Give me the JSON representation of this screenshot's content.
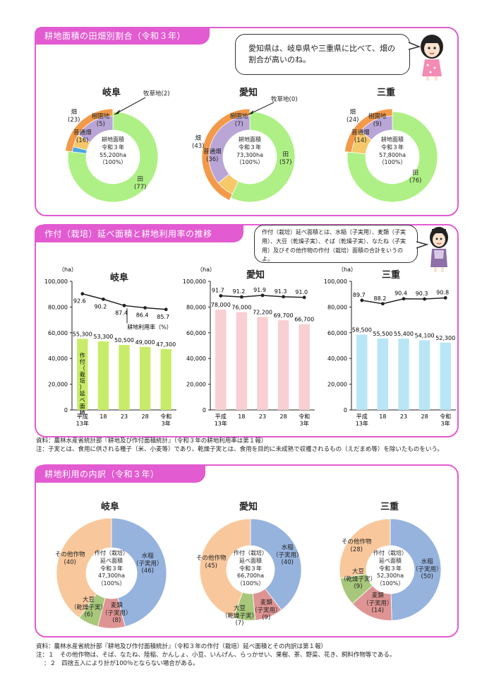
{
  "section1": {
    "title": "耕地面積の田畑別割合（令和３年）",
    "speech": "愛知県は、岐阜県や三重県に比べて、畑の割合が高いのね。",
    "charts": [
      {
        "pref": "岐阜",
        "center": [
          "耕地面積",
          "令和３年",
          "55,200ha",
          "（100%）"
        ],
        "labels": {
          "field": "畑",
          "field_v": "(23)",
          "ordinary": "普通畑",
          "ordinary_v": "(16)",
          "orchard": "樹園地",
          "orchard_v": "(5)",
          "pasture": "牧草地(2)",
          "paddy": "田",
          "paddy_v": "(77)"
        }
      },
      {
        "pref": "愛知",
        "center": [
          "耕地面積",
          "令和３年",
          "73,300ha",
          "（100%）"
        ],
        "labels": {
          "field": "畑",
          "field_v": "(43)",
          "ordinary": "普通畑",
          "ordinary_v": "(36)",
          "orchard": "樹園地",
          "orchard_v": "(7)",
          "pasture": "牧草地(0)",
          "paddy": "田",
          "paddy_v": "(57)"
        }
      },
      {
        "pref": "三重",
        "center": [
          "耕地面積",
          "令和３年",
          "57,800ha",
          "（100%）"
        ],
        "labels": {
          "field": "畑",
          "field_v": "(24)",
          "ordinary": "普通畑",
          "ordinary_v": "(14)",
          "orchard": "樹園地",
          "orchard_v": "(9)",
          "paddy": "田",
          "paddy_v": "(76)"
        }
      }
    ]
  },
  "section2": {
    "title": "作付（栽培）延べ面積と耕地利用率の推移",
    "speech": "作付（栽培）延べ面積とは、水稲（子実用）、麦類（子実用）、大豆（乾燥子実）、そば（乾燥子実）、なたね（子実用）及びその他作物の作付（栽培）面積の合計をいうのよ。",
    "unit": "（ha）",
    "yticks": [
      "100,000",
      "80,000",
      "60,000",
      "40,000",
      "20,000",
      "0"
    ],
    "xticks": [
      "平成\n13年",
      "18",
      "23",
      "28",
      "令和\n3年"
    ],
    "rate_label": "耕地利用率（%）",
    "bar_label": "作付（栽培）延べ面積",
    "source": "資料：農林水産省統計部『耕地及び作付面積統計』（令和３年の耕地利用率は第１報）",
    "note": "注：子実とは、食用に供される種子（米、小麦等）であり、乾燥子実とは、食用を目的に未成熟で収穫されるもの（えだまめ等）を除いたものをいう。"
  },
  "chart_data": [
    {
      "type": "bar",
      "title": "岐阜",
      "categories": [
        "平成13年",
        "18",
        "23",
        "28",
        "令和3年"
      ],
      "values": [
        55300,
        53300,
        50500,
        49000,
        47300
      ],
      "value_labels": [
        "55,300",
        "53,300",
        "50,500",
        "49,000",
        "47,300"
      ],
      "line": [
        92.6,
        90.2,
        87.4,
        86.4,
        85.7
      ],
      "ylim": [
        0,
        100000
      ],
      "color": "#c8ec6a"
    },
    {
      "type": "bar",
      "title": "愛知",
      "categories": [
        "平成13年",
        "18",
        "23",
        "28",
        "令和3年"
      ],
      "values": [
        78000,
        76000,
        72200,
        69700,
        66700
      ],
      "value_labels": [
        "78,000",
        "76,000",
        "72,200",
        "69,700",
        "66,700"
      ],
      "line": [
        91.7,
        91.2,
        91.9,
        91.3,
        91.0
      ],
      "ylim": [
        0,
        100000
      ],
      "color": "#f8cfd2"
    },
    {
      "type": "bar",
      "title": "三重",
      "categories": [
        "平成13年",
        "18",
        "23",
        "28",
        "令和3年"
      ],
      "values": [
        58500,
        55500,
        55400,
        54100,
        52300
      ],
      "value_labels": [
        "58,500",
        "55,500",
        "55,400",
        "54,100",
        "52,300"
      ],
      "line": [
        89.7,
        88.2,
        90.4,
        90.3,
        90.8
      ],
      "ylim": [
        0,
        100000
      ],
      "color": "#b8e6f6"
    },
    {
      "type": "pie",
      "title": "岐阜",
      "slices": [
        {
          "name": "田",
          "value": 77,
          "color": "#aef085"
        },
        {
          "name": "牧草地",
          "value": 2,
          "color": "#4aa6e0"
        },
        {
          "name": "樹園地",
          "value": 5,
          "color": "#f6c86a"
        },
        {
          "name": "普通畑",
          "value": 16,
          "color": "#f29a4a"
        }
      ]
    },
    {
      "type": "pie",
      "title": "愛知",
      "slices": [
        {
          "name": "田",
          "value": 57,
          "color": "#aef085"
        },
        {
          "name": "牧草地",
          "value": 0,
          "color": "#4aa6e0"
        },
        {
          "name": "樹園地",
          "value": 7,
          "color": "#f6c86a"
        },
        {
          "name": "普通畑",
          "value": 36,
          "color": "#f29a4a"
        }
      ]
    },
    {
      "type": "pie",
      "title": "三重",
      "slices": [
        {
          "name": "田",
          "value": 76,
          "color": "#aef085"
        },
        {
          "name": "樹園地",
          "value": 9,
          "color": "#f6c86a"
        },
        {
          "name": "普通畑",
          "value": 14,
          "color": "#f29a4a"
        }
      ]
    },
    {
      "type": "pie",
      "title": "岐阜",
      "slices": [
        {
          "name": "水稲（子実用）",
          "value": 46,
          "color": "#96b3de"
        },
        {
          "name": "麦類（子実用）",
          "value": 8,
          "color": "#de9493"
        },
        {
          "name": "大豆（乾燥子実）",
          "value": 6,
          "color": "#a7c77a"
        },
        {
          "name": "その他作物",
          "value": 40,
          "color": "#f8c89c"
        }
      ]
    },
    {
      "type": "pie",
      "title": "愛知",
      "slices": [
        {
          "name": "水稲（子実用）",
          "value": 40,
          "color": "#96b3de"
        },
        {
          "name": "麦類（子実用）",
          "value": 9,
          "color": "#de9493"
        },
        {
          "name": "大豆（乾燥子実）",
          "value": 7,
          "color": "#a7c77a"
        },
        {
          "name": "その他作物",
          "value": 45,
          "color": "#f8c89c"
        }
      ]
    },
    {
      "type": "pie",
      "title": "三重",
      "slices": [
        {
          "name": "水稲（子実用）",
          "value": 50,
          "color": "#96b3de"
        },
        {
          "name": "麦類（子実用）",
          "value": 14,
          "color": "#de9493"
        },
        {
          "name": "大豆（乾燥子実）",
          "value": 9,
          "color": "#a7c77a"
        },
        {
          "name": "その他作物",
          "value": 28,
          "color": "#f8c89c"
        }
      ]
    }
  ],
  "section3": {
    "title": "耕地利用の内訳（令和３年）",
    "charts": [
      {
        "pref": "岐阜",
        "center": [
          "作付（栽培）",
          "延べ面積",
          "令和３年",
          "47,300ha",
          "（100%）"
        ],
        "labels": {
          "rice": "水稲\n（子実用）",
          "rice_v": "(46)",
          "wheat": "麦類\n（子実用）",
          "wheat_v": "(8)",
          "soy": "大豆\n（乾燥子実）",
          "soy_v": "(6)",
          "other": "その他作物",
          "other_v": "(40)"
        }
      },
      {
        "pref": "愛知",
        "center": [
          "作付（栽培）",
          "延べ面積",
          "令和３年",
          "66,700ha",
          "（100%）"
        ],
        "labels": {
          "rice": "水稲\n（子実用）",
          "rice_v": "(40)",
          "wheat": "麦類\n（子実用）",
          "wheat_v": "(9)",
          "soy": "大豆\n（乾燥子実）",
          "soy_v": "(7)",
          "other": "その他作物",
          "other_v": "(45)"
        }
      },
      {
        "pref": "三重",
        "center": [
          "作付（栽培）",
          "延べ面積",
          "令和３年",
          "52,300ha",
          "（100%）"
        ],
        "labels": {
          "rice": "水稲\n（子実用）",
          "rice_v": "(50)",
          "wheat": "麦類\n（子実用）",
          "wheat_v": "(14)",
          "soy": "大豆\n（乾燥子実）",
          "soy_v": "(9)",
          "other": "その他作物",
          "other_v": "(28)"
        }
      }
    ],
    "source": "資料：農林水産省統計部『耕地及び作付面積統計』（令和３年の作付（栽培）延べ面積とその内訳は第１報）",
    "note1": "注：１　その他作物は、そば、なたね、陸稲、かんしょ、小豆、いんげん、らっかせい、果樹、茶、野菜、花き、飼料作物等である。",
    "note2": "：２　四捨五入により計が100％とならない場合がある。"
  }
}
